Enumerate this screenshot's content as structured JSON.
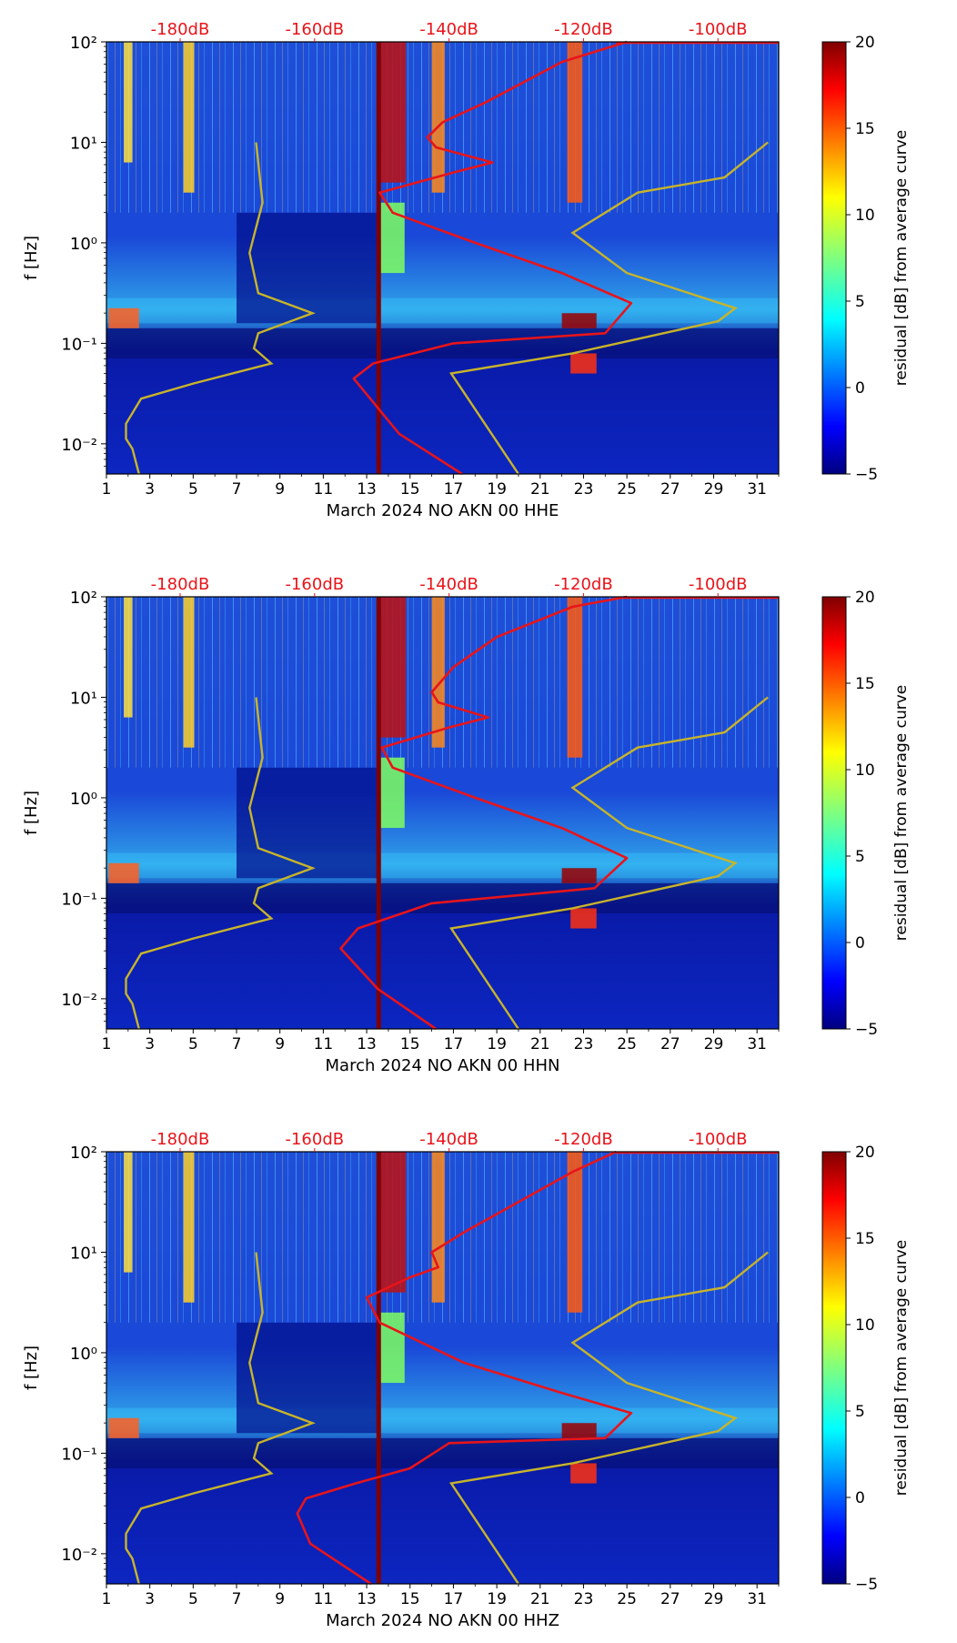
{
  "chart_data": [
    {
      "type": "heatmap",
      "xlabel": "March 2024 NO AKN 00 HHE",
      "ylabel": "f [Hz]",
      "x_ticks": [
        "1",
        "3",
        "5",
        "7",
        "9",
        "11",
        "13",
        "15",
        "17",
        "19",
        "21",
        "23",
        "25",
        "27",
        "29",
        "31"
      ],
      "xlim": [
        1,
        32
      ],
      "y_ticks": [
        "10⁻²",
        "10⁻¹",
        "10⁰",
        "10¹",
        "10²"
      ],
      "ylim_log10": [
        -2.3,
        2
      ],
      "top_ticks": [
        "-180dB",
        "-160dB",
        "-140dB",
        "-120dB",
        "-100dB"
      ],
      "colorbar": {
        "label": "residual [dB] from average curve",
        "ticks": [
          "−5",
          "0",
          "5",
          "10",
          "15",
          "20"
        ],
        "range": [
          -5,
          20
        ]
      },
      "mean_curve_name": "average PSD (red)",
      "mean_curve_x_day": [
        17.4,
        14.5,
        12.4,
        13.3,
        17.0,
        24.0,
        25.2,
        22.0,
        18.0,
        14.2,
        13.6,
        17.0,
        18.8,
        16.2,
        15.8,
        16.5,
        18.5,
        22.0,
        25.0
      ],
      "mean_curve_logf": [
        -2.3,
        -1.9,
        -1.35,
        -1.2,
        -1.0,
        -0.9,
        -0.6,
        -0.3,
        0.0,
        0.3,
        0.5,
        0.7,
        0.8,
        0.95,
        1.05,
        1.2,
        1.4,
        1.8,
        2.0
      ]
    },
    {
      "type": "heatmap",
      "xlabel": "March 2024 NO AKN 00 HHN",
      "ylabel": "f [Hz]",
      "x_ticks": [
        "1",
        "3",
        "5",
        "7",
        "9",
        "11",
        "13",
        "15",
        "17",
        "19",
        "21",
        "23",
        "25",
        "27",
        "29",
        "31"
      ],
      "xlim": [
        1,
        32
      ],
      "y_ticks": [
        "10⁻²",
        "10⁻¹",
        "10⁰",
        "10¹",
        "10²"
      ],
      "ylim_log10": [
        -2.3,
        2
      ],
      "top_ticks": [
        "-180dB",
        "-160dB",
        "-140dB",
        "-120dB",
        "-100dB"
      ],
      "colorbar": {
        "label": "residual [dB] from average curve",
        "ticks": [
          "−5",
          "0",
          "5",
          "10",
          "15",
          "20"
        ],
        "range": [
          -5,
          20
        ]
      },
      "mean_curve_name": "average PSD (red)",
      "mean_curve_x_day": [
        16.2,
        13.5,
        11.8,
        12.6,
        16.0,
        23.5,
        25.0,
        22.0,
        18.0,
        14.2,
        13.7,
        16.8,
        18.6,
        16.3,
        16.0,
        17.0,
        19.0,
        22.5,
        25.0
      ],
      "mean_curve_logf": [
        -2.3,
        -1.9,
        -1.5,
        -1.3,
        -1.05,
        -0.9,
        -0.6,
        -0.3,
        0.0,
        0.3,
        0.5,
        0.7,
        0.8,
        0.95,
        1.05,
        1.3,
        1.6,
        1.9,
        2.0
      ]
    },
    {
      "type": "heatmap",
      "xlabel": "March 2024 NO AKN 00 HHZ",
      "ylabel": "f [Hz]",
      "x_ticks": [
        "1",
        "3",
        "5",
        "7",
        "9",
        "11",
        "13",
        "15",
        "17",
        "19",
        "21",
        "23",
        "25",
        "27",
        "29",
        "31"
      ],
      "xlim": [
        1,
        32
      ],
      "y_ticks": [
        "10⁻²",
        "10⁻¹",
        "10⁰",
        "10¹",
        "10²"
      ],
      "ylim_log10": [
        -2.3,
        2
      ],
      "top_ticks": [
        "-180dB",
        "-160dB",
        "-140dB",
        "-120dB",
        "-100dB"
      ],
      "colorbar": {
        "label": "residual [dB] from average curve",
        "ticks": [
          "−5",
          "0",
          "5",
          "10",
          "15",
          "20"
        ],
        "range": [
          -5,
          20
        ]
      },
      "mean_curve_name": "average PSD (red)",
      "mean_curve_x_day": [
        13.2,
        10.4,
        9.8,
        10.2,
        12.5,
        15.0,
        16.8,
        24.0,
        25.2,
        22.0,
        17.5,
        13.6,
        13.0,
        15.0,
        16.3,
        16.0,
        17.5,
        20.0,
        22.5,
        24.5
      ],
      "mean_curve_logf": [
        -2.3,
        -1.9,
        -1.6,
        -1.45,
        -1.3,
        -1.15,
        -0.9,
        -0.85,
        -0.6,
        -0.4,
        -0.1,
        0.3,
        0.55,
        0.75,
        0.85,
        1.0,
        1.2,
        1.5,
        1.8,
        2.0
      ]
    }
  ],
  "noise_model_curves": {
    "name": "low / high noise model (yellow)",
    "low_x_day": [
      2.5,
      2.2,
      1.9,
      1.9,
      2.6,
      5.0,
      8.6,
      7.8,
      8.0,
      10.5,
      8.0,
      7.6,
      8.2,
      7.9
    ],
    "low_logf": [
      -2.3,
      -2.05,
      -1.95,
      -1.8,
      -1.55,
      -1.4,
      -1.2,
      -1.05,
      -0.9,
      -0.7,
      -0.5,
      -0.1,
      0.4,
      1.0
    ],
    "high_x_day": [
      20.0,
      16.9,
      22.5,
      29.2,
      30.0,
      25.0,
      22.5,
      25.5,
      29.5,
      31.5
    ],
    "high_logf": [
      -2.3,
      -1.3,
      -1.1,
      -0.78,
      -0.65,
      -0.3,
      0.1,
      0.5,
      0.65,
      1.0
    ]
  }
}
